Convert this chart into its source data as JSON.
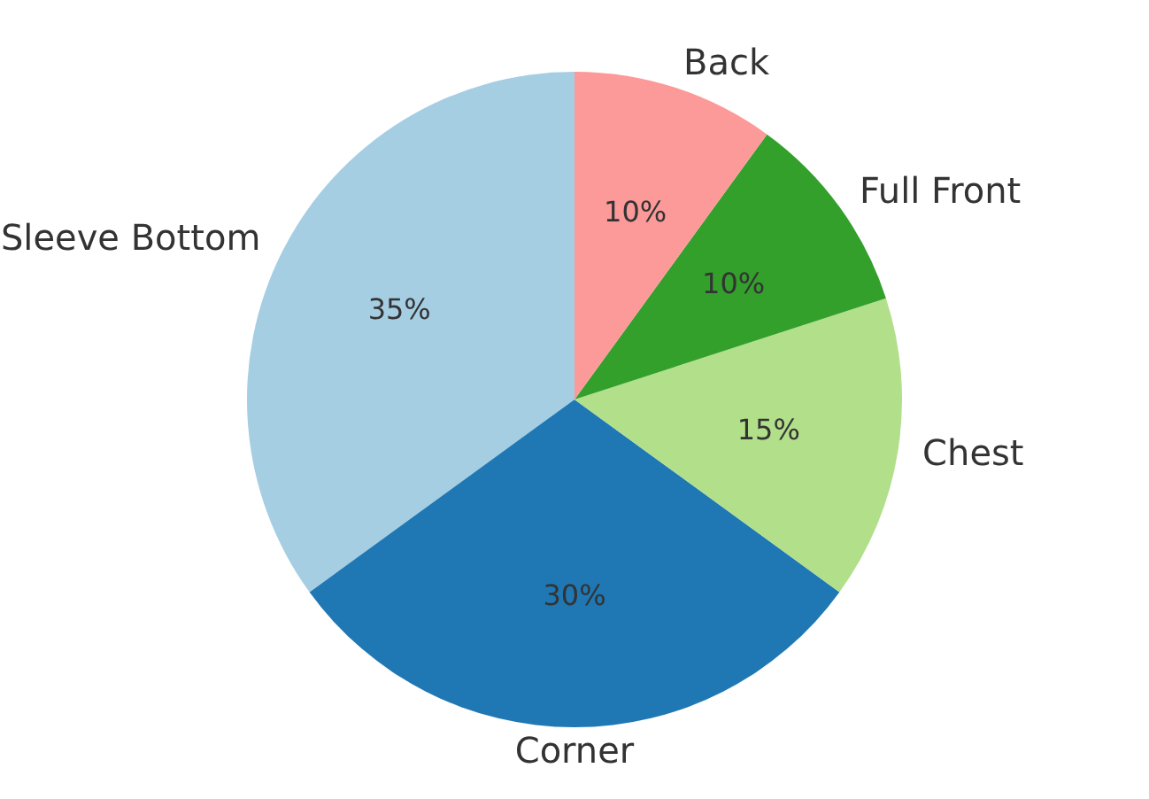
{
  "chart_data": {
    "type": "pie",
    "categories": [
      "Sleeve Bottom",
      "Corner",
      "Chest",
      "Full Front",
      "Back"
    ],
    "values": [
      35,
      30,
      15,
      10,
      10
    ],
    "colors": [
      "#a6cee3",
      "#1f78b4",
      "#b2df8a",
      "#33a02c",
      "#fb9a99"
    ],
    "value_labels": [
      "35%",
      "30%",
      "15%",
      "10%",
      "10%"
    ]
  }
}
